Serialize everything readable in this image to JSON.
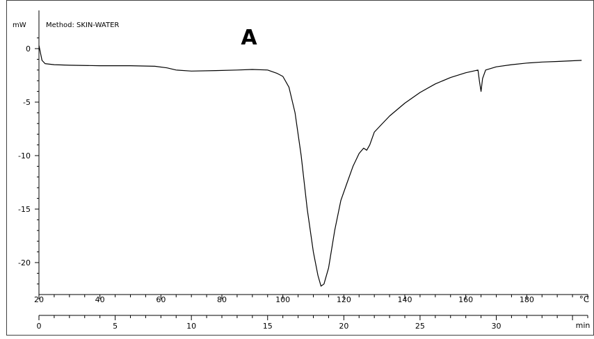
{
  "chart_data": {
    "type": "line",
    "title": "A",
    "method_label": "Method: SKIN-WATER",
    "ylabel": "mW",
    "x_unit_top": "°C",
    "x_unit_bottom": "min",
    "ylim": [
      -24,
      1.5
    ],
    "y_ticks": [
      0,
      -5,
      -10,
      -15,
      -20
    ],
    "x_top_ticks": [
      20,
      40,
      60,
      80,
      100,
      120,
      140,
      160,
      180
    ],
    "x_top_range": [
      20,
      200
    ],
    "x_bottom_ticks": [
      0,
      5,
      10,
      15,
      20,
      25,
      30
    ],
    "x_bottom_range": [
      0,
      36
    ],
    "grid": false,
    "line_color": "#000000",
    "series": [
      {
        "points": [
          [
            20,
            0.3
          ],
          [
            20.5,
            -0.4
          ],
          [
            21,
            -1.1
          ],
          [
            22,
            -1.4
          ],
          [
            25,
            -1.5
          ],
          [
            30,
            -1.55
          ],
          [
            40,
            -1.6
          ],
          [
            50,
            -1.6
          ],
          [
            58,
            -1.65
          ],
          [
            62,
            -1.8
          ],
          [
            65,
            -2.0
          ],
          [
            70,
            -2.1
          ],
          [
            78,
            -2.05
          ],
          [
            85,
            -2.0
          ],
          [
            90,
            -1.95
          ],
          [
            95,
            -2.0
          ],
          [
            98,
            -2.3
          ],
          [
            100,
            -2.6
          ],
          [
            102,
            -3.6
          ],
          [
            104,
            -6.0
          ],
          [
            106,
            -10.0
          ],
          [
            108,
            -15.0
          ],
          [
            110,
            -19.0
          ],
          [
            111.5,
            -21.2
          ],
          [
            112.5,
            -22.2
          ],
          [
            113.5,
            -22.0
          ],
          [
            115,
            -20.5
          ],
          [
            117,
            -17.0
          ],
          [
            119,
            -14.2
          ],
          [
            121,
            -12.6
          ],
          [
            123,
            -11.0
          ],
          [
            125,
            -9.8
          ],
          [
            126.5,
            -9.3
          ],
          [
            127.5,
            -9.5
          ],
          [
            128.5,
            -9.0
          ],
          [
            130,
            -7.8
          ],
          [
            132,
            -7.2
          ],
          [
            135,
            -6.3
          ],
          [
            140,
            -5.1
          ],
          [
            145,
            -4.1
          ],
          [
            150,
            -3.3
          ],
          [
            155,
            -2.7
          ],
          [
            160,
            -2.25
          ],
          [
            164,
            -2.0
          ],
          [
            164.5,
            -3.1
          ],
          [
            165,
            -4.0
          ],
          [
            165.5,
            -2.8
          ],
          [
            166.5,
            -2.0
          ],
          [
            170,
            -1.7
          ],
          [
            175,
            -1.5
          ],
          [
            180,
            -1.35
          ],
          [
            185,
            -1.25
          ],
          [
            190,
            -1.2
          ],
          [
            198,
            -1.1
          ]
        ]
      }
    ]
  }
}
